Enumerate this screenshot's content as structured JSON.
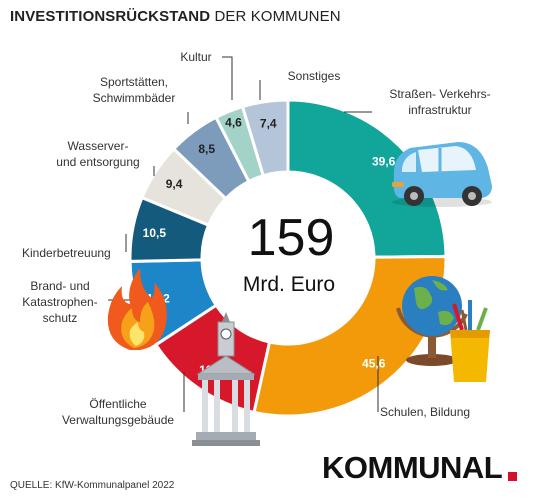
{
  "title": {
    "bold": "INVESTITIONSRÜCKSTAND",
    "light": "DER KOMMUNEN"
  },
  "center": {
    "total": "159",
    "unit": "Mrd. Euro"
  },
  "source": "QUELLE: KfW-Kommunalpanel 2022",
  "logo": "KOMMUNAL",
  "chart_data": {
    "type": "pie",
    "variant": "donut",
    "title": "INVESTITIONSRÜCKSTAND DER KOMMUNEN",
    "unit": "Mrd. Euro",
    "total": 159,
    "slices": [
      {
        "label": "Straßen- Verkehrs- infrastruktur",
        "lines": [
          "Straßen- Verkehrs-",
          "infrastruktur"
        ],
        "value": 39.6,
        "display": "39,6",
        "color": "#12a59a"
      },
      {
        "label": "Schulen, Bildung",
        "lines": [
          "Schulen, Bildung"
        ],
        "value": 45.6,
        "display": "45,6",
        "color": "#f29a0a"
      },
      {
        "label": "Öffentliche Verwaltungsgebäude",
        "lines": [
          "Öffentliche",
          "Verwaltungsgebäude"
        ],
        "value": 19.6,
        "display": "19,6",
        "color": "#d7182a"
      },
      {
        "label": "Brand- und Katastrophen- schutz",
        "lines": [
          "Brand- und",
          "Katastrophen-",
          "schutz"
        ],
        "value": 14.2,
        "display": "14,2",
        "color": "#1c86c8"
      },
      {
        "label": "Kinderbetreuung",
        "lines": [
          "Kinderbetreuung"
        ],
        "value": 10.5,
        "display": "10,5",
        "color": "#145a7c"
      },
      {
        "label": "Wasserver- und entsorgung",
        "lines": [
          "Wasserver-",
          "und entsorgung"
        ],
        "value": 9.4,
        "display": "9,4",
        "color": "#e6e3dc"
      },
      {
        "label": "Sportstätten, Schwimmbäder",
        "lines": [
          "Sportstätten,",
          "Schwimmbäder"
        ],
        "value": 8.5,
        "display": "8,5",
        "color": "#7d9cbc"
      },
      {
        "label": "Kultur",
        "lines": [
          "Kultur"
        ],
        "value": 4.6,
        "display": "4,6",
        "color": "#a2d2c8"
      },
      {
        "label": "Sonstiges",
        "lines": [
          "Sonstiges"
        ],
        "value": 7.4,
        "display": "7,4",
        "color": "#b4c5da"
      }
    ],
    "icons": [
      "car-icon",
      "globe-icon",
      "pencil-cup-icon",
      "town-hall-icon",
      "fire-icon"
    ]
  }
}
